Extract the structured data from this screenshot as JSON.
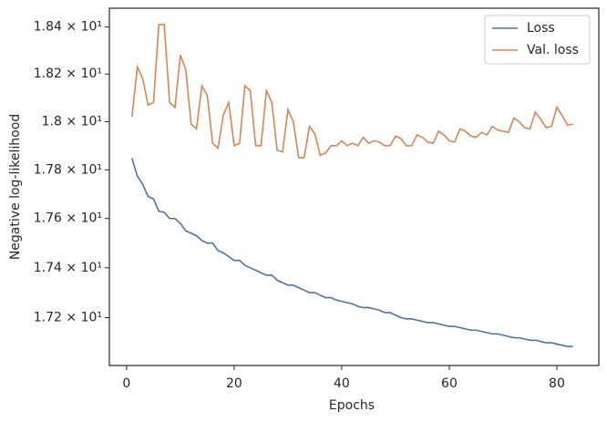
{
  "chart_data": {
    "type": "line",
    "x_label": "Epochs",
    "y_label": "Negative log-likelihood",
    "y_scale": "log",
    "legend": "upper right",
    "xlim": [
      -3.2,
      87.8
    ],
    "xticks": [
      0,
      20,
      40,
      60,
      80
    ],
    "ylim": [
      17.01,
      18.48
    ],
    "yticks": [
      {
        "value": 17.2,
        "label": "1.72 × 10¹"
      },
      {
        "value": 17.4,
        "label": "1.74 × 10¹"
      },
      {
        "value": 17.6,
        "label": "1.76 × 10¹"
      },
      {
        "value": 17.8,
        "label": "1.78 × 10¹"
      },
      {
        "value": 18.0,
        "label": "1.8 × 10¹"
      },
      {
        "value": 18.2,
        "label": "1.82 × 10¹"
      },
      {
        "value": 18.4,
        "label": "1.84 × 10¹"
      }
    ],
    "x": [
      1,
      2,
      3,
      4,
      5,
      6,
      7,
      8,
      9,
      10,
      11,
      12,
      13,
      14,
      15,
      16,
      17,
      18,
      19,
      20,
      21,
      22,
      23,
      24,
      25,
      26,
      27,
      28,
      29,
      30,
      31,
      32,
      33,
      34,
      35,
      36,
      37,
      38,
      39,
      40,
      41,
      42,
      43,
      44,
      45,
      46,
      47,
      48,
      49,
      50,
      51,
      52,
      53,
      54,
      55,
      56,
      57,
      58,
      59,
      60,
      61,
      62,
      63,
      64,
      65,
      66,
      67,
      68,
      69,
      70,
      71,
      72,
      73,
      74,
      75,
      76,
      77,
      78,
      79,
      80,
      81,
      82,
      83
    ],
    "series": [
      {
        "name": "Loss",
        "color": "#4c72b0",
        "values": [
          17.848,
          17.774,
          17.74,
          17.69,
          17.68,
          17.63,
          17.625,
          17.6,
          17.6,
          17.58,
          17.55,
          17.54,
          17.53,
          17.51,
          17.5,
          17.5,
          17.47,
          17.46,
          17.445,
          17.43,
          17.43,
          17.41,
          17.4,
          17.39,
          17.38,
          17.37,
          17.37,
          17.35,
          17.34,
          17.33,
          17.33,
          17.32,
          17.31,
          17.3,
          17.3,
          17.29,
          17.28,
          17.28,
          17.27,
          17.265,
          17.26,
          17.255,
          17.245,
          17.24,
          17.24,
          17.235,
          17.23,
          17.22,
          17.22,
          17.21,
          17.2,
          17.195,
          17.195,
          17.19,
          17.185,
          17.18,
          17.18,
          17.175,
          17.17,
          17.165,
          17.165,
          17.16,
          17.155,
          17.15,
          17.15,
          17.145,
          17.14,
          17.135,
          17.135,
          17.13,
          17.125,
          17.12,
          17.12,
          17.115,
          17.11,
          17.11,
          17.105,
          17.1,
          17.1,
          17.095,
          17.09,
          17.085,
          17.085
        ]
      },
      {
        "name": "Val. loss",
        "color": "#dd8452",
        "values": [
          18.02,
          18.23,
          18.18,
          18.07,
          18.08,
          18.41,
          18.41,
          18.08,
          18.06,
          18.28,
          18.22,
          17.99,
          17.97,
          18.15,
          18.11,
          17.91,
          17.89,
          18.03,
          18.08,
          17.9,
          17.91,
          18.15,
          18.13,
          17.9,
          17.9,
          18.13,
          18.08,
          17.88,
          17.875,
          18.05,
          18.0,
          17.85,
          17.85,
          17.98,
          17.95,
          17.86,
          17.87,
          17.9,
          17.9,
          17.92,
          17.9,
          17.91,
          17.9,
          17.935,
          17.91,
          17.92,
          17.915,
          17.9,
          17.9,
          17.94,
          17.93,
          17.9,
          17.9,
          17.945,
          17.935,
          17.915,
          17.91,
          17.96,
          17.945,
          17.92,
          17.915,
          17.97,
          17.96,
          17.94,
          17.935,
          17.955,
          17.945,
          17.98,
          17.965,
          17.96,
          17.955,
          18.015,
          18.0,
          17.975,
          17.97,
          18.04,
          18.01,
          17.975,
          17.98,
          18.06,
          18.025,
          17.985,
          17.99
        ]
      }
    ]
  }
}
